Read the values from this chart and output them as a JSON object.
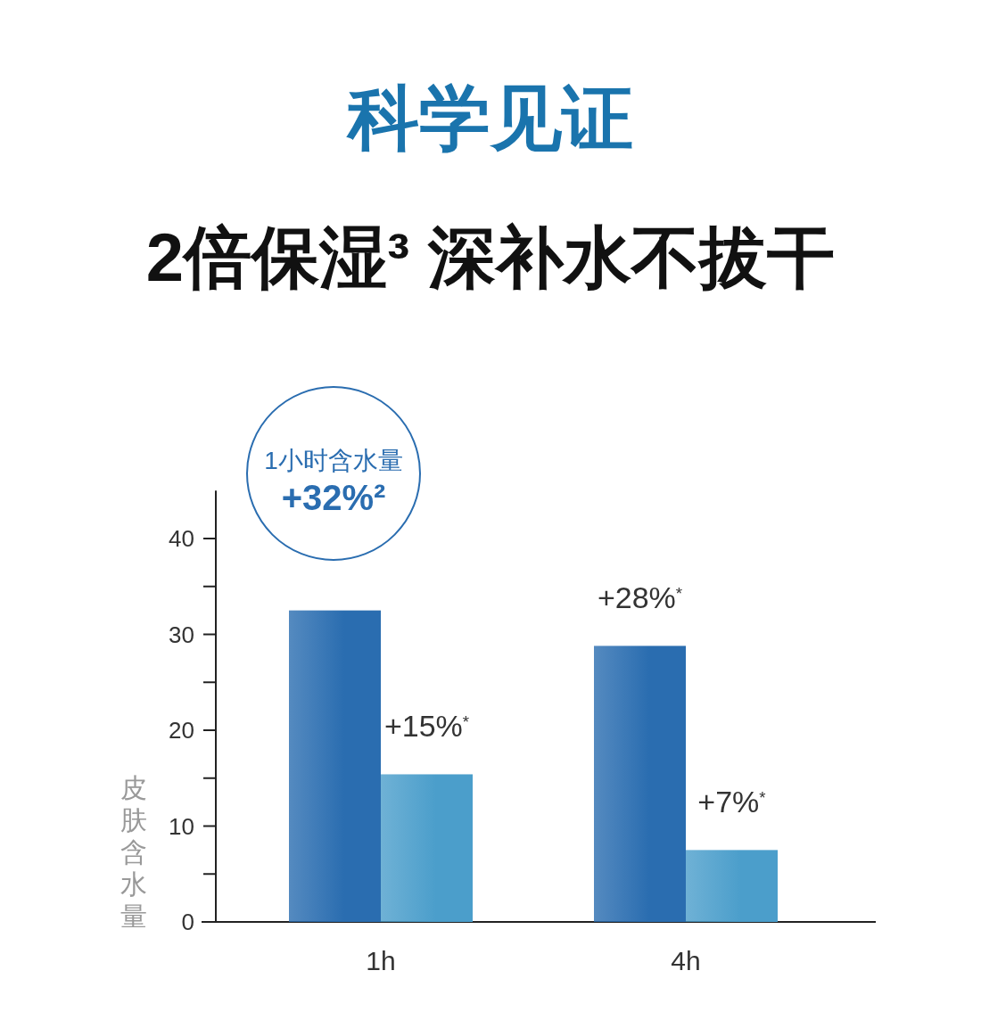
{
  "chart_data": {
    "type": "bar",
    "title": "科学见证",
    "subtitle": "2倍保湿³ 深补水不拔干",
    "ylabel": "皮肤含水量",
    "categories": [
      "1h",
      "4h"
    ],
    "series": [
      {
        "color": "#2a6db0",
        "values": [
          32.5,
          28.8
        ]
      },
      {
        "color": "#4b9ecb",
        "values": [
          15.4,
          7.5
        ]
      }
    ],
    "annotations": [
      "1小时含水量",
      "+32%²",
      {
        "text": "+15%$^{*}$",
        "x": "1h",
        "y": 15.4
      },
      {
        "text": "+28%$^{*}$",
        "x": "4h",
        "y": 28.8
      },
      {
        "text": "+7%$^{*}$",
        "x": "4h",
        "y": 7.5
      }
    ],
    "ylim": [
      0,
      45
    ],
    "yticks": [
      0,
      {
        "value": 5,
        "label": null
      },
      10,
      {
        "value": 15,
        "label": null
      },
      20,
      {
        "value": 25,
        "label": null
      },
      30,
      {
        "value": 35,
        "label": null
      },
      40
    ],
    "grid": false
  }
}
